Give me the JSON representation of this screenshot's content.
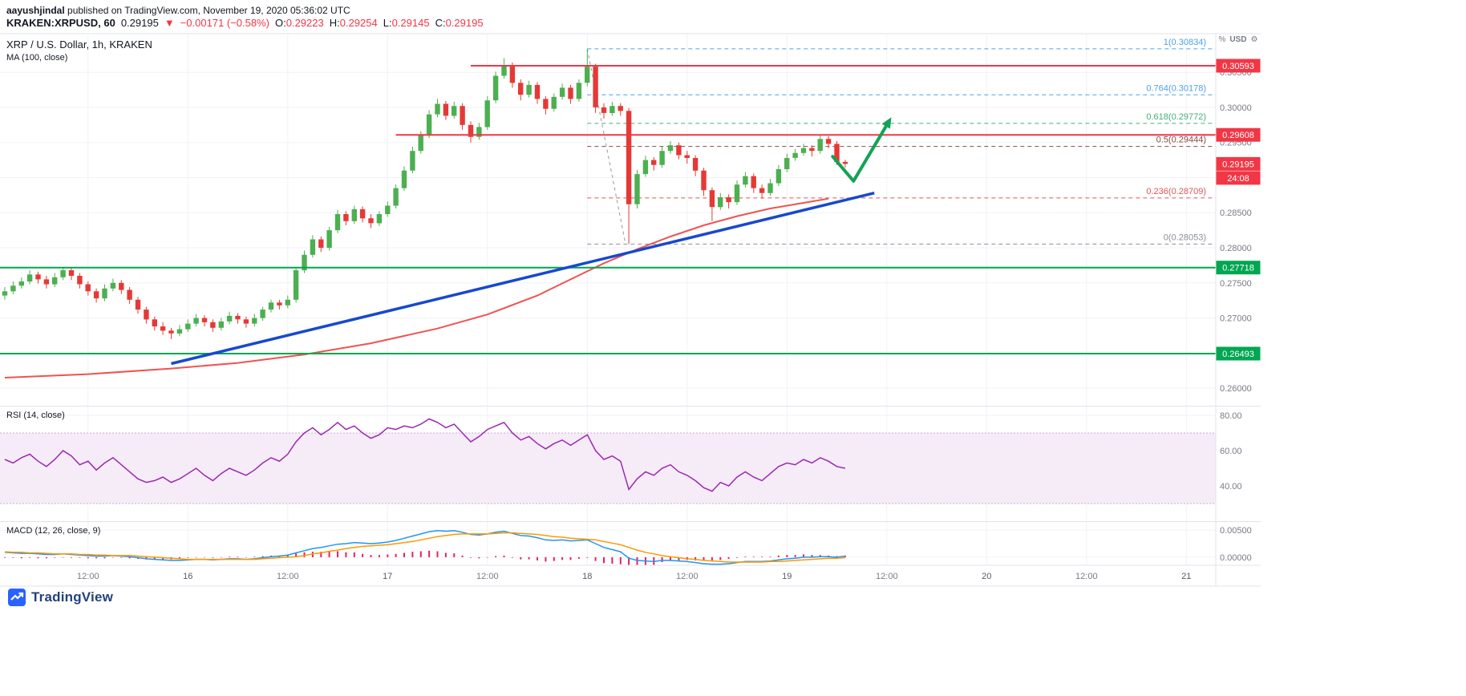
{
  "header": {
    "byline": {
      "username": "aayushjindal",
      "rest": " published on TradingView.com, November 19, 2020 05:36:02 UTC"
    },
    "symbol_line": {
      "symbol": "KRAKEN:XRPUSD, 60",
      "last": "0.29195",
      "direction": "▼",
      "change": "−0.00171 (−0.58%)",
      "o_label": "O:",
      "o": "0.29223",
      "h_label": "H:",
      "h": "0.29254",
      "l_label": "L:",
      "l": "0.29145",
      "c_label": "C:",
      "c": "0.29195"
    }
  },
  "legend": {
    "main": "XRP / U.S. Dollar, 1h, KRAKEN",
    "ma": "MA (100, close)",
    "rsi": "RSI (14, close)",
    "macd": "MACD (12, 26, close, 9)"
  },
  "axis_header": {
    "currency": "USD"
  },
  "footer": {
    "brand": "TradingView"
  },
  "colors": {
    "up": "#4caf50",
    "down": "#e53935",
    "level_red": "#f23645",
    "level_green": "#00a651",
    "trend_blue": "#1849cc",
    "ma": "#ef5350",
    "rsi": "#9c27b0",
    "rsi_band_fill": "#f6ecf8",
    "rsi_band_border": "#cfa6dd",
    "macd": "#2196f3",
    "signal": "#ff9800",
    "hist": "#e91e63",
    "arrow": "#13a356",
    "connector": "#9598a1",
    "axis_text": "#787b86",
    "text_dark": "#131722",
    "grid": "#f0f2f7",
    "border": "#e0e3eb",
    "brand_blue": "#2962ff",
    "brand_text": "#25417c"
  },
  "chart_data": {
    "type": "candlestick",
    "title": "XRP / U.S. Dollar, 1h, KRAKEN",
    "symbol": "XRP / U.S. Dollar",
    "interval": "1h",
    "exchange": "KRAKEN",
    "panes": {
      "price": {
        "ylim": [
          0.2575,
          0.3105
        ],
        "ticks": [
          0.305,
          0.3,
          0.295,
          0.29,
          0.285,
          0.28,
          0.275,
          0.27,
          0.265,
          0.26
        ]
      }
    },
    "candles": [
      [
        0.2732,
        0.2744,
        0.2726,
        0.2738
      ],
      [
        0.2738,
        0.2752,
        0.2734,
        0.2746
      ],
      [
        0.2746,
        0.2758,
        0.2742,
        0.2752
      ],
      [
        0.2752,
        0.2768,
        0.2748,
        0.2762
      ],
      [
        0.2762,
        0.2766,
        0.2749,
        0.2755
      ],
      [
        0.2755,
        0.276,
        0.2742,
        0.2748
      ],
      [
        0.2748,
        0.2764,
        0.2744,
        0.2758
      ],
      [
        0.2758,
        0.2773,
        0.2754,
        0.2768
      ],
      [
        0.2768,
        0.2772,
        0.2754,
        0.276
      ],
      [
        0.276,
        0.2764,
        0.2742,
        0.2748
      ],
      [
        0.2748,
        0.2752,
        0.2732,
        0.2738
      ],
      [
        0.2738,
        0.2742,
        0.2722,
        0.2728
      ],
      [
        0.2728,
        0.2748,
        0.2724,
        0.2742
      ],
      [
        0.2742,
        0.2756,
        0.2738,
        0.275
      ],
      [
        0.275,
        0.2754,
        0.2734,
        0.274
      ],
      [
        0.274,
        0.2744,
        0.272,
        0.2726
      ],
      [
        0.2726,
        0.273,
        0.2706,
        0.2712
      ],
      [
        0.2712,
        0.2716,
        0.2692,
        0.2698
      ],
      [
        0.2698,
        0.2702,
        0.2682,
        0.2688
      ],
      [
        0.2688,
        0.2694,
        0.2676,
        0.2682
      ],
      [
        0.2682,
        0.2686,
        0.267,
        0.2678
      ],
      [
        0.2678,
        0.269,
        0.2674,
        0.2684
      ],
      [
        0.2684,
        0.2698,
        0.268,
        0.2692
      ],
      [
        0.2692,
        0.2706,
        0.2688,
        0.27
      ],
      [
        0.27,
        0.2704,
        0.2688,
        0.2694
      ],
      [
        0.2694,
        0.2698,
        0.268,
        0.2686
      ],
      [
        0.2686,
        0.27,
        0.2682,
        0.2695
      ],
      [
        0.2695,
        0.2709,
        0.2691,
        0.2703
      ],
      [
        0.2703,
        0.2707,
        0.2692,
        0.2698
      ],
      [
        0.2698,
        0.2702,
        0.2686,
        0.2692
      ],
      [
        0.2692,
        0.2706,
        0.2688,
        0.27
      ],
      [
        0.27,
        0.2716,
        0.2696,
        0.2712
      ],
      [
        0.2712,
        0.2726,
        0.2708,
        0.2722
      ],
      [
        0.2722,
        0.2726,
        0.2712,
        0.2718
      ],
      [
        0.2718,
        0.2732,
        0.2714,
        0.2726
      ],
      [
        0.2726,
        0.2772,
        0.2722,
        0.2768
      ],
      [
        0.2768,
        0.2796,
        0.2764,
        0.279
      ],
      [
        0.279,
        0.2818,
        0.2786,
        0.2812
      ],
      [
        0.2812,
        0.2816,
        0.2794,
        0.28
      ],
      [
        0.28,
        0.283,
        0.2796,
        0.2825
      ],
      [
        0.2825,
        0.2854,
        0.2821,
        0.2848
      ],
      [
        0.2848,
        0.2852,
        0.2832,
        0.2838
      ],
      [
        0.2838,
        0.286,
        0.2834,
        0.2855
      ],
      [
        0.2855,
        0.2859,
        0.2836,
        0.2842
      ],
      [
        0.2842,
        0.2848,
        0.2828,
        0.2835
      ],
      [
        0.2835,
        0.2852,
        0.2831,
        0.2848
      ],
      [
        0.2848,
        0.2866,
        0.2844,
        0.286
      ],
      [
        0.286,
        0.289,
        0.2856,
        0.2885
      ],
      [
        0.2885,
        0.2916,
        0.2881,
        0.291
      ],
      [
        0.291,
        0.2944,
        0.2906,
        0.2938
      ],
      [
        0.2938,
        0.2966,
        0.2934,
        0.296
      ],
      [
        0.296,
        0.2996,
        0.2956,
        0.299
      ],
      [
        0.299,
        0.3012,
        0.2986,
        0.3005
      ],
      [
        0.3005,
        0.3009,
        0.2982,
        0.2988
      ],
      [
        0.2988,
        0.3008,
        0.2984,
        0.3002
      ],
      [
        0.3002,
        0.3006,
        0.2968,
        0.2975
      ],
      [
        0.2975,
        0.298,
        0.295,
        0.2958
      ],
      [
        0.2958,
        0.2978,
        0.2954,
        0.2972
      ],
      [
        0.2972,
        0.3016,
        0.2968,
        0.301
      ],
      [
        0.301,
        0.3051,
        0.3006,
        0.3045
      ],
      [
        0.3045,
        0.307,
        0.3041,
        0.306
      ],
      [
        0.306,
        0.3064,
        0.3028,
        0.3035
      ],
      [
        0.3035,
        0.304,
        0.301,
        0.3018
      ],
      [
        0.3018,
        0.3038,
        0.3014,
        0.3032
      ],
      [
        0.3032,
        0.3036,
        0.3005,
        0.3012
      ],
      [
        0.3012,
        0.3016,
        0.299,
        0.2998
      ],
      [
        0.2998,
        0.302,
        0.2994,
        0.3015
      ],
      [
        0.3015,
        0.3034,
        0.3011,
        0.3028
      ],
      [
        0.3028,
        0.3032,
        0.3005,
        0.3012
      ],
      [
        0.3012,
        0.304,
        0.3008,
        0.3035
      ],
      [
        0.3035,
        0.30834,
        0.303,
        0.3058
      ],
      [
        0.3058,
        0.3062,
        0.2992,
        0.3
      ],
      [
        0.3,
        0.3006,
        0.2984,
        0.2992
      ],
      [
        0.2992,
        0.3008,
        0.2988,
        0.3002
      ],
      [
        0.3002,
        0.3006,
        0.2988,
        0.2995
      ],
      [
        0.2995,
        0.2999,
        0.28053,
        0.2862
      ],
      [
        0.2862,
        0.2911,
        0.2856,
        0.2905
      ],
      [
        0.2905,
        0.2931,
        0.2901,
        0.2925
      ],
      [
        0.2925,
        0.2929,
        0.291,
        0.2918
      ],
      [
        0.2918,
        0.2944,
        0.2914,
        0.2938
      ],
      [
        0.2938,
        0.2952,
        0.2934,
        0.2946
      ],
      [
        0.2946,
        0.295,
        0.2926,
        0.2932
      ],
      [
        0.2932,
        0.2938,
        0.292,
        0.2928
      ],
      [
        0.2928,
        0.2932,
        0.2902,
        0.291
      ],
      [
        0.291,
        0.2914,
        0.2874,
        0.2882
      ],
      [
        0.2882,
        0.2886,
        0.2838,
        0.2858
      ],
      [
        0.2858,
        0.2878,
        0.2854,
        0.2872
      ],
      [
        0.2872,
        0.2876,
        0.2856,
        0.2865
      ],
      [
        0.2865,
        0.2896,
        0.2861,
        0.289
      ],
      [
        0.289,
        0.2908,
        0.2886,
        0.2902
      ],
      [
        0.2902,
        0.2906,
        0.2878,
        0.2885
      ],
      [
        0.2885,
        0.289,
        0.287,
        0.2878
      ],
      [
        0.2878,
        0.2898,
        0.2874,
        0.2892
      ],
      [
        0.2892,
        0.2918,
        0.2888,
        0.2912
      ],
      [
        0.2912,
        0.2934,
        0.2908,
        0.2928
      ],
      [
        0.2928,
        0.2941,
        0.2924,
        0.2935
      ],
      [
        0.2935,
        0.2948,
        0.2931,
        0.2942
      ],
      [
        0.2942,
        0.2946,
        0.293,
        0.2938
      ],
      [
        0.2938,
        0.2961,
        0.2934,
        0.2955
      ],
      [
        0.2955,
        0.2959,
        0.2942,
        0.2948
      ],
      [
        0.2948,
        0.2952,
        0.2918,
        0.29223
      ],
      [
        0.29223,
        0.29254,
        0.29145,
        0.29195
      ]
    ],
    "ma100": [
      [
        0,
        0.2615
      ],
      [
        10,
        0.262
      ],
      [
        20,
        0.2628
      ],
      [
        28,
        0.2636
      ],
      [
        36,
        0.2648
      ],
      [
        44,
        0.2664
      ],
      [
        52,
        0.2685
      ],
      [
        58,
        0.2705
      ],
      [
        64,
        0.2732
      ],
      [
        68,
        0.2755
      ],
      [
        72,
        0.2778
      ],
      [
        76,
        0.2798
      ],
      [
        80,
        0.2816
      ],
      [
        84,
        0.2832
      ],
      [
        88,
        0.2845
      ],
      [
        92,
        0.2856
      ],
      [
        96,
        0.2864
      ],
      [
        99,
        0.287
      ]
    ],
    "trendline": {
      "from": [
        20,
        0.2635
      ],
      "to": [
        104.5,
        0.2878
      ]
    },
    "levels": [
      {
        "price": 0.30593,
        "from": 56,
        "color": "#f23645"
      },
      {
        "price": 0.29608,
        "from": 47,
        "color": "#f23645"
      },
      {
        "price": 0.27718,
        "from": 0,
        "color": "#00a651"
      },
      {
        "price": 0.26493,
        "from": 0,
        "color": "#00a651"
      }
    ],
    "fib": {
      "from_index": 70,
      "connector": [
        [
          70,
          0.30834
        ],
        [
          74.6,
          0.28053
        ]
      ],
      "levels": [
        {
          "label": "1(0.30834)",
          "price": 0.30834,
          "color": "#4ea1e8"
        },
        {
          "label": "0.764(0.30178)",
          "price": 0.30178,
          "color": "#4ea1e8"
        },
        {
          "label": "0.618(0.29772)",
          "price": 0.29772,
          "color": "#43b07a"
        },
        {
          "label": "0.5(0.29444)",
          "price": 0.29444,
          "color": "#8c4a42"
        },
        {
          "label": "0.236(0.28709)",
          "price": 0.28709,
          "color": "#e05555"
        },
        {
          "label": "0(0.28053)",
          "price": 0.28053,
          "color": "#8b8f98"
        }
      ]
    },
    "annotations": {
      "arrow": [
        [
          99.5,
          0.293
        ],
        [
          102,
          0.2895
        ],
        [
          106,
          0.2975
        ]
      ]
    },
    "rsi": {
      "ylim": [
        20,
        85
      ],
      "band": [
        30,
        70
      ],
      "ticks": [
        80,
        60,
        40
      ],
      "values": [
        55,
        53,
        56,
        58,
        54,
        51,
        55,
        60,
        57,
        52,
        54,
        49,
        53,
        56,
        52,
        48,
        44,
        42,
        43,
        45,
        42,
        44,
        47,
        50,
        46,
        43,
        47,
        50,
        48,
        46,
        49,
        53,
        56,
        54,
        58,
        65,
        70,
        73,
        69,
        72,
        76,
        72,
        74,
        70,
        67,
        69,
        73,
        72,
        74,
        73,
        75,
        78,
        76,
        73,
        75,
        70,
        65,
        68,
        72,
        74,
        76,
        70,
        66,
        68,
        64,
        61,
        64,
        66,
        63,
        66,
        69,
        60,
        55,
        57,
        54,
        38,
        44,
        48,
        46,
        50,
        52,
        48,
        46,
        43,
        39,
        37,
        42,
        40,
        45,
        48,
        45,
        43,
        47,
        51,
        53,
        52,
        55,
        53,
        56,
        54,
        51,
        50
      ]
    },
    "macd": {
      "ylim": [
        -0.0015,
        0.0065
      ],
      "ticks": [
        0.005,
        0
      ],
      "macd": [
        0.0009,
        0.0008,
        0.0007,
        0.0007,
        0.0006,
        0.0005,
        0.0005,
        0.0006,
        0.0005,
        0.0004,
        0.0003,
        0.0002,
        0.0002,
        0.0003,
        0.0002,
        0.0001,
        -0.0001,
        -0.0003,
        -0.0004,
        -0.0005,
        -0.0006,
        -0.0006,
        -0.0005,
        -0.0004,
        -0.0004,
        -0.0005,
        -0.0004,
        -0.0003,
        -0.0003,
        -0.0004,
        -0.0003,
        -0.0001,
        0.0001,
        0.0002,
        0.0004,
        0.0008,
        0.0012,
        0.0016,
        0.0018,
        0.0021,
        0.0024,
        0.0025,
        0.0027,
        0.0026,
        0.0025,
        0.0026,
        0.0028,
        0.0031,
        0.0035,
        0.0039,
        0.0043,
        0.0047,
        0.0049,
        0.0048,
        0.0049,
        0.0046,
        0.0042,
        0.0041,
        0.0043,
        0.0046,
        0.0048,
        0.0044,
        0.004,
        0.0039,
        0.0036,
        0.0032,
        0.0031,
        0.0032,
        0.003,
        0.0031,
        0.0032,
        0.0025,
        0.0018,
        0.0014,
        0.001,
        -0.0002,
        -0.0006,
        -0.0007,
        -0.0008,
        -0.0006,
        -0.0006,
        -0.0007,
        -0.0008,
        -0.001,
        -0.0012,
        -0.0013,
        -0.0013,
        -0.0012,
        -0.001,
        -0.0008,
        -0.0008,
        -0.0008,
        -0.0007,
        -0.0005,
        -0.0003,
        -0.0002,
        0.0,
        0.0,
        0.0001,
        0.0001,
        0.0,
        0.0002
      ],
      "signal": [
        0.001,
        0.0009,
        0.0009,
        0.0008,
        0.0008,
        0.0007,
        0.0006,
        0.0006,
        0.0006,
        0.0005,
        0.0005,
        0.0004,
        0.0004,
        0.0003,
        0.0003,
        0.0003,
        0.0002,
        0.0001,
        0.0,
        -0.0001,
        -0.0002,
        -0.0003,
        -0.0004,
        -0.0004,
        -0.0004,
        -0.0004,
        -0.0004,
        -0.0004,
        -0.0004,
        -0.0004,
        -0.0004,
        -0.0003,
        -0.0002,
        -0.0001,
        0.0,
        0.0001,
        0.0003,
        0.0006,
        0.0008,
        0.0011,
        0.0013,
        0.0016,
        0.0018,
        0.002,
        0.0021,
        0.0022,
        0.0023,
        0.0025,
        0.0027,
        0.0029,
        0.0032,
        0.0035,
        0.0038,
        0.004,
        0.0042,
        0.0043,
        0.0043,
        0.0043,
        0.0043,
        0.0044,
        0.0045,
        0.0045,
        0.0044,
        0.0043,
        0.0042,
        0.004,
        0.0038,
        0.0037,
        0.0035,
        0.0034,
        0.0033,
        0.0032,
        0.0029,
        0.0026,
        0.0023,
        0.0018,
        0.0013,
        0.0009,
        0.0006,
        0.0003,
        0.0001,
        -0.0001,
        -0.0003,
        -0.0004,
        -0.0006,
        -0.0007,
        -0.0008,
        -0.0009,
        -0.0009,
        -0.0009,
        -0.0009,
        -0.0009,
        -0.0008,
        -0.0008,
        -0.0007,
        -0.0006,
        -0.0005,
        -0.0004,
        -0.0003,
        -0.0002,
        -0.0002,
        -0.0001
      ]
    },
    "x_ticks": [
      {
        "i": 10,
        "label": "12:00"
      },
      {
        "i": 22,
        "label": "16"
      },
      {
        "i": 34,
        "label": "12:00"
      },
      {
        "i": 46,
        "label": "17"
      },
      {
        "i": 58,
        "label": "12:00"
      },
      {
        "i": 70,
        "label": "18"
      },
      {
        "i": 82,
        "label": "12:00"
      },
      {
        "i": 94,
        "label": "19"
      },
      {
        "i": 106,
        "label": "12:00"
      },
      {
        "i": 118,
        "label": "20"
      },
      {
        "i": 130,
        "label": "12:00"
      },
      {
        "i": 142,
        "label": "21"
      }
    ],
    "price_badges": [
      {
        "text": "0.30593",
        "price": 0.30593,
        "bg": "#f23645"
      },
      {
        "text": "0.29608",
        "price": 0.29608,
        "bg": "#f23645"
      },
      {
        "text": "0.29195",
        "price": 0.29195,
        "bg": "#f23645"
      },
      {
        "text": "24:08",
        "price": 0.29195,
        "below": true,
        "bg": "#f23645"
      },
      {
        "text": "0.27718",
        "price": 0.27718,
        "bg": "#00a651"
      },
      {
        "text": "0.26493",
        "price": 0.26493,
        "bg": "#00a651"
      }
    ]
  }
}
